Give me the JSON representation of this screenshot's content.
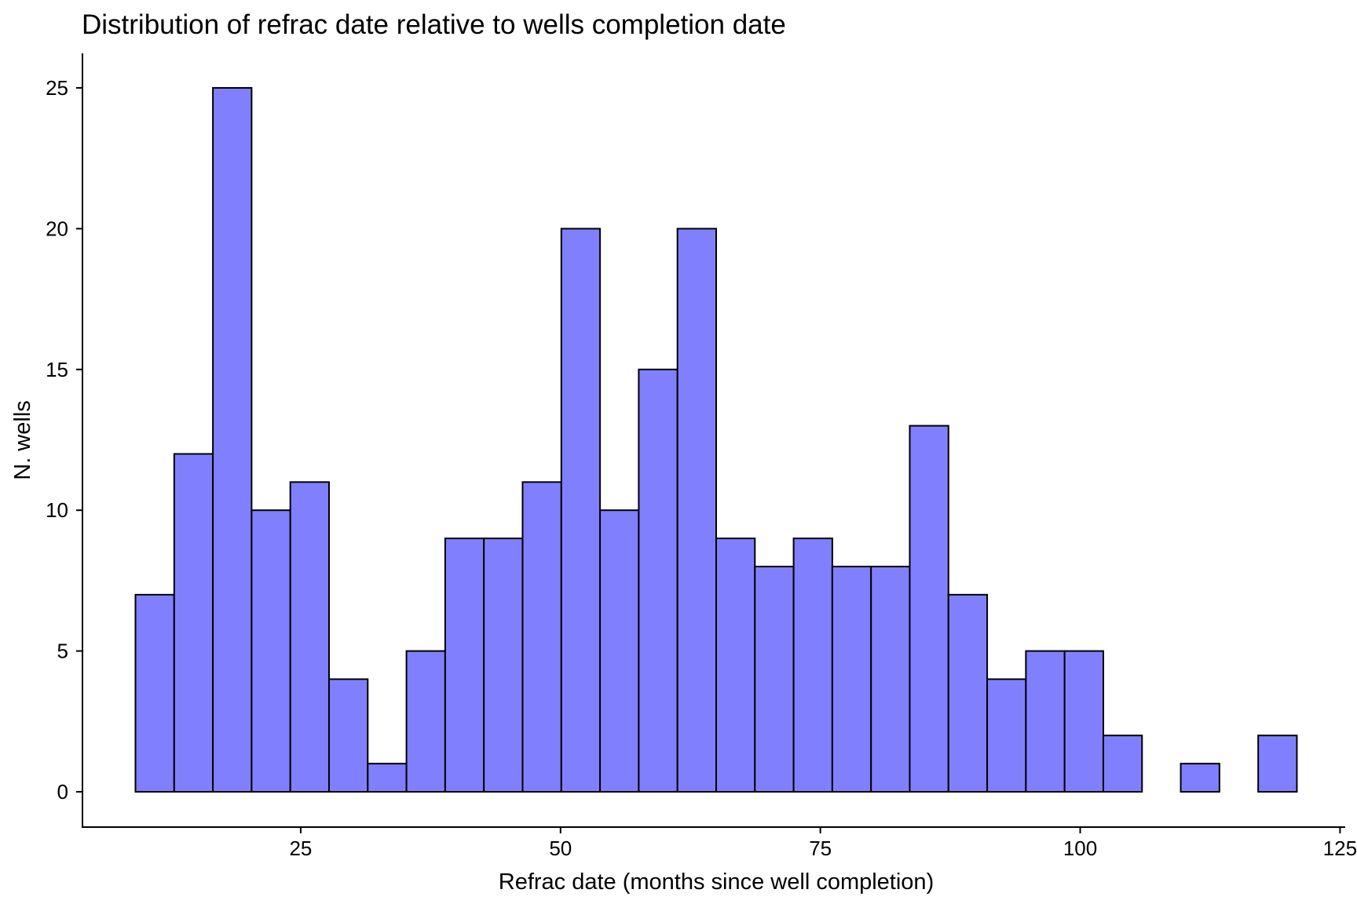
{
  "chart_data": {
    "type": "bar",
    "title": "Distribution of refrac date relative to wells completion date",
    "xlabel": "Refrac date (months since well completion)",
    "ylabel": "N. wells",
    "bin_width": 3.725,
    "bin_start": 9.1,
    "counts": [
      7,
      12,
      25,
      10,
      11,
      4,
      1,
      5,
      9,
      9,
      11,
      20,
      10,
      15,
      20,
      9,
      8,
      9,
      8,
      8,
      13,
      7,
      4,
      5,
      5,
      2,
      0,
      1,
      0,
      2
    ],
    "xlim": [
      4,
      125.5
    ],
    "ylim": [
      0,
      25
    ],
    "x_ticks": [
      25,
      50,
      75,
      100,
      125
    ],
    "x_tick_labels": [
      "25",
      "50",
      "75",
      "100",
      "125"
    ],
    "y_ticks": [
      0,
      5,
      10,
      15,
      20,
      25
    ],
    "y_tick_labels": [
      "0",
      "5",
      "10",
      "15",
      "20",
      "25"
    ],
    "bar_color": "#8080ff",
    "bar_outline": "#000000",
    "grid": false,
    "legend": "none"
  }
}
